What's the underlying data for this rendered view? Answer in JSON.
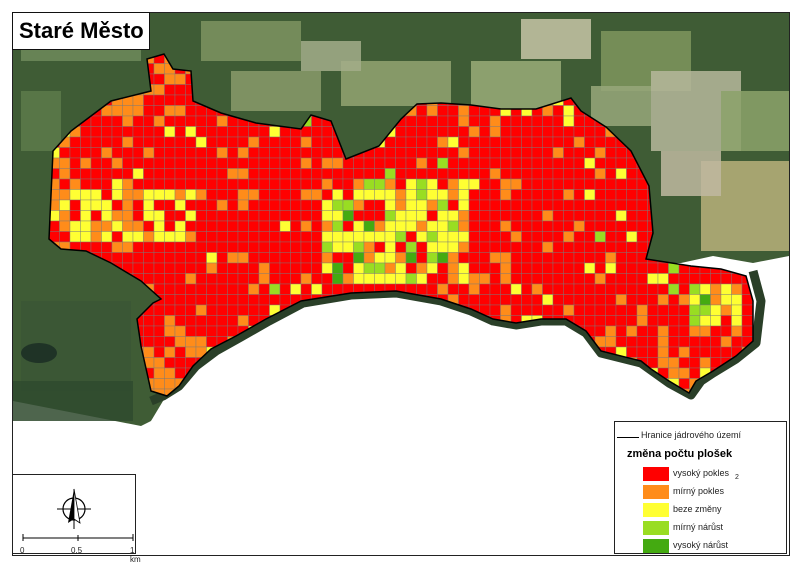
{
  "title": "Staré Město",
  "legend": {
    "boundary_label": "Hranice jádrového území",
    "heading": "změna počtu plošek",
    "classes": [
      {
        "label": "vysoký pokles",
        "color": "#ff0000"
      },
      {
        "label": "mírný pokles",
        "color": "#ff8c1a"
      },
      {
        "label": "beze změny",
        "color": "#ffff33"
      },
      {
        "label": "mírný nárůst",
        "color": "#99dd22"
      },
      {
        "label": "vysoký nárůst",
        "color": "#44aa11"
      }
    ],
    "stray_mark": "2"
  },
  "scale_bar": {
    "ticks": [
      "0",
      "0.5",
      "1 km"
    ]
  },
  "north_arrow": "north-arrow-icon",
  "colors": {
    "boundary": "#000000",
    "imagery_dark": "#3f5c35",
    "imagery_light": "#7d9361",
    "gridline": "#7a7a7a"
  }
}
